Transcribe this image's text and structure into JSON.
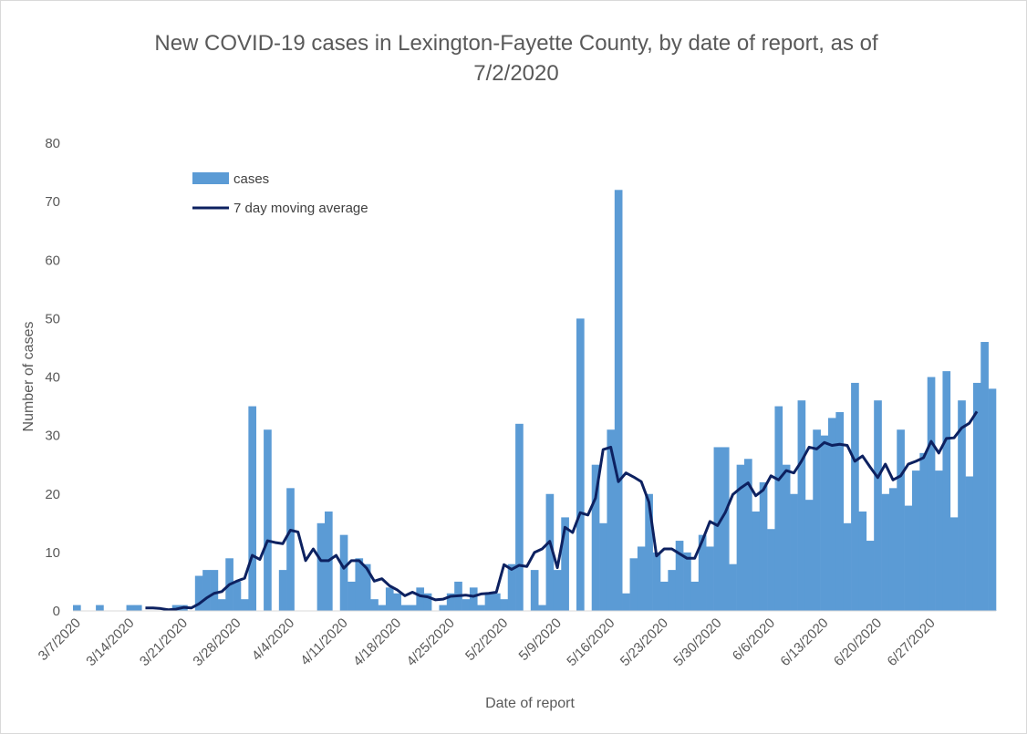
{
  "chart_data": {
    "type": "bar",
    "title": "New COVID-19 cases in Lexington-Fayette County, by date of report, as of 7/2/2020",
    "xlabel": "Date of report",
    "ylabel": "Number of cases",
    "ylim": [
      0,
      80
    ],
    "y_ticks": [
      0,
      10,
      20,
      30,
      40,
      50,
      60,
      70,
      80
    ],
    "x_tick_labels": [
      "3/7/2020",
      "3/14/2020",
      "3/21/2020",
      "3/28/2020",
      "4/4/2020",
      "4/11/2020",
      "4/18/2020",
      "4/25/2020",
      "5/2/2020",
      "5/9/2020",
      "5/16/2020",
      "5/23/2020",
      "5/30/2020",
      "6/6/2020",
      "6/13/2020",
      "6/20/2020",
      "6/27/2020"
    ],
    "x_start_date": "3/7/2020",
    "grid": false,
    "legend_position": "top-left",
    "colors": {
      "bars": "#5b9bd5",
      "line": "#0d2160"
    },
    "series": [
      {
        "name": "cases",
        "type": "bar",
        "values": [
          1,
          0,
          0,
          1,
          0,
          0,
          0,
          1,
          1,
          0,
          0,
          0,
          0,
          1,
          1,
          0,
          6,
          7,
          7,
          2,
          9,
          5,
          2,
          35,
          0,
          31,
          0,
          7,
          21,
          0,
          0,
          0,
          15,
          17,
          0,
          13,
          5,
          9,
          8,
          2,
          1,
          4,
          3,
          1,
          1,
          4,
          3,
          0,
          1,
          3,
          5,
          2,
          4,
          1,
          3,
          3,
          2,
          8,
          32,
          0,
          7,
          1,
          20,
          7,
          16,
          0,
          50,
          0,
          25,
          15,
          31,
          72,
          3,
          9,
          11,
          20,
          10,
          5,
          7,
          12,
          10,
          5,
          13,
          11,
          28,
          28,
          8,
          25,
          26,
          17,
          22,
          14,
          35,
          25,
          20,
          36,
          19,
          31,
          30,
          33,
          34,
          15,
          39,
          17,
          12,
          36,
          20,
          21,
          31,
          18,
          24,
          27,
          40,
          24,
          41,
          16,
          36,
          23,
          39,
          46,
          38
        ]
      },
      {
        "name": "7 day moving average",
        "type": "line",
        "start_index": 9,
        "values": [
          0.5,
          0.5,
          0.4,
          0.2,
          0.3,
          0.6,
          0.5,
          1.2,
          2.2,
          3.0,
          3.3,
          4.5,
          5.1,
          5.6,
          9.5,
          8.8,
          12.0,
          11.7,
          11.5,
          13.8,
          13.5,
          8.6,
          10.6,
          8.6,
          8.6,
          9.5,
          7.3,
          8.6,
          8.6,
          7.3,
          5.1,
          5.5,
          4.3,
          3.6,
          2.6,
          3.2,
          2.6,
          2.4,
          1.9,
          2.0,
          2.5,
          2.6,
          2.7,
          2.5,
          2.9,
          3.0,
          3.2,
          7.9,
          7.1,
          7.8,
          7.6,
          10.0,
          10.6,
          11.9,
          7.4,
          14.3,
          13.4,
          16.8,
          16.4,
          19.3,
          27.6,
          28.0,
          22.1,
          23.6,
          22.9,
          22.1,
          18.6,
          9.4,
          10.6,
          10.6,
          9.8,
          9.0,
          9.0,
          12.0,
          15.3,
          14.6,
          16.8,
          19.9,
          21.0,
          21.9,
          19.7,
          20.7,
          23.1,
          22.4,
          24.0,
          23.6,
          25.6,
          28.0,
          27.7,
          28.8,
          28.3,
          28.5,
          28.3,
          25.6,
          26.5,
          24.6,
          22.8,
          25.1,
          22.4,
          23.1,
          25.1,
          25.6,
          26.2,
          29.0,
          27.0,
          29.5,
          29.6,
          31.3,
          32.1,
          34.1
        ]
      }
    ]
  }
}
